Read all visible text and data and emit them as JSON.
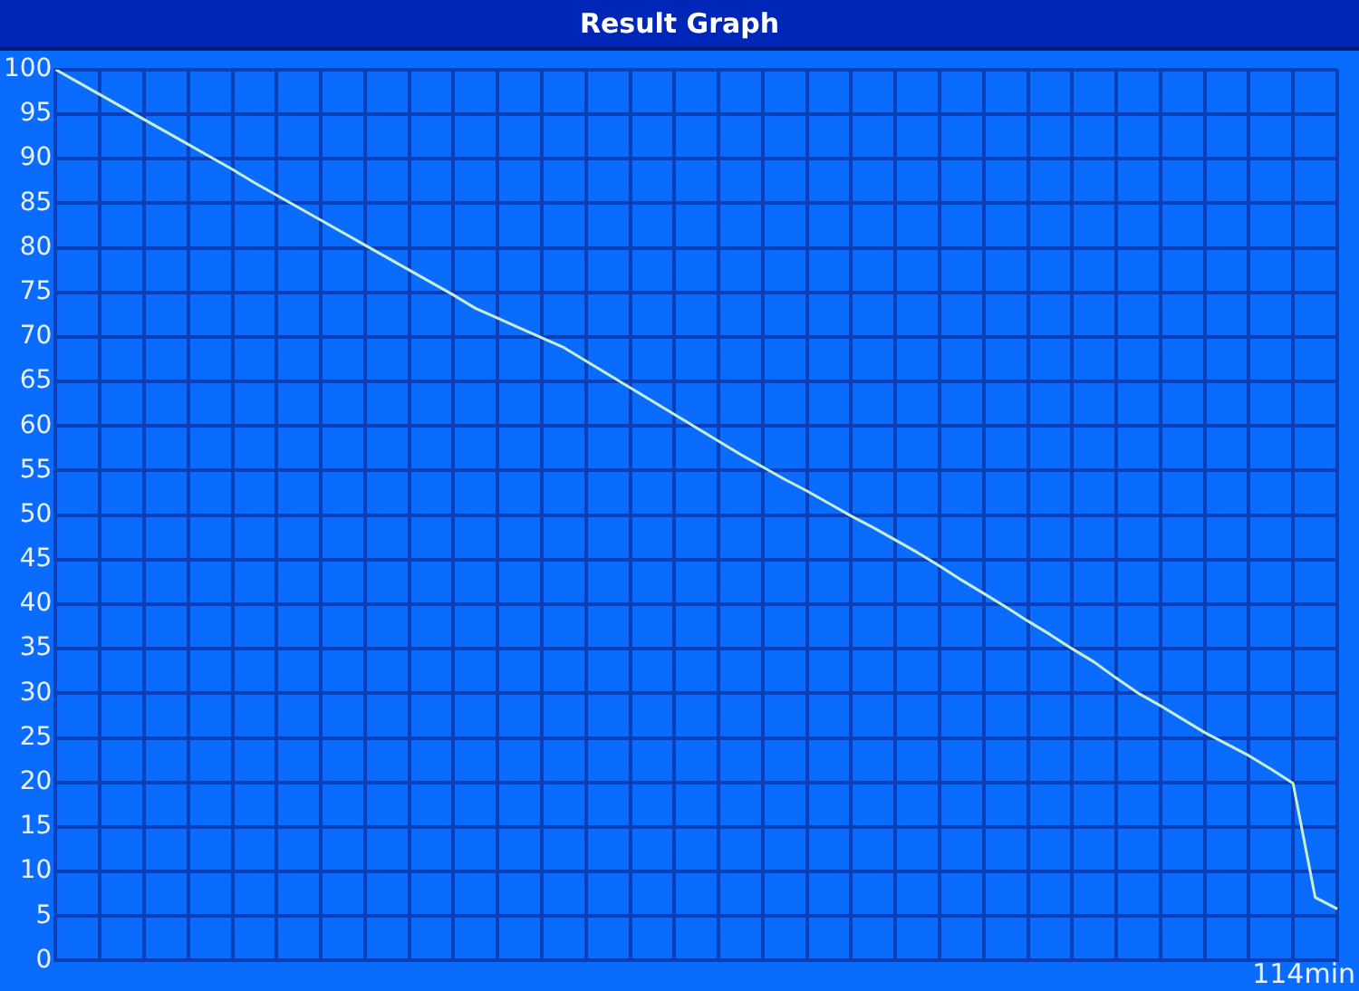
{
  "chart_data": {
    "type": "line",
    "title": "Result Graph",
    "categories": [
      null,
      null,
      null,
      null,
      null,
      null,
      null,
      null,
      null,
      null,
      null,
      null,
      null,
      null,
      null,
      null,
      null,
      null,
      null,
      null,
      null,
      null,
      null,
      null,
      null,
      null,
      null,
      null,
      null,
      null,
      null,
      null,
      null,
      null,
      null,
      null,
      null,
      null,
      null,
      null,
      null,
      null,
      null,
      null,
      null,
      null,
      null,
      null,
      null,
      null,
      null,
      null,
      null,
      null,
      null,
      null,
      null,
      null,
      null
    ],
    "series": [
      {
        "color": "#c8f0d0",
        "values": [
          100,
          98.6,
          97.2,
          95.8,
          94.4,
          93.0,
          91.6,
          90.2,
          88.8,
          87.3,
          85.9,
          84.5,
          83.1,
          81.7,
          80.3,
          78.9,
          77.5,
          76.1,
          74.7,
          73.2,
          72.1,
          71.0,
          69.9,
          68.8,
          67.3,
          65.8,
          64.3,
          62.8,
          61.3,
          59.8,
          58.3,
          56.8,
          55.4,
          54.0,
          52.7,
          51.3,
          49.9,
          48.6,
          47.2,
          45.8,
          44.3,
          42.7,
          41.2,
          39.7,
          38.1,
          36.6,
          35.0,
          33.5,
          31.7,
          30.0,
          28.6,
          27.1,
          25.6,
          24.3,
          23.0,
          21.5,
          19.9,
          7.1,
          5.8
        ]
      }
    ],
    "ylim": [
      0,
      100
    ],
    "yticks": [
      0,
      5,
      10,
      15,
      20,
      25,
      30,
      35,
      40,
      45,
      50,
      55,
      60,
      65,
      70,
      75,
      80,
      85,
      90,
      95,
      100
    ],
    "annotations": [
      "114min"
    ],
    "grid": true,
    "legend": false,
    "marker": "none",
    "line_style": "solid"
  }
}
